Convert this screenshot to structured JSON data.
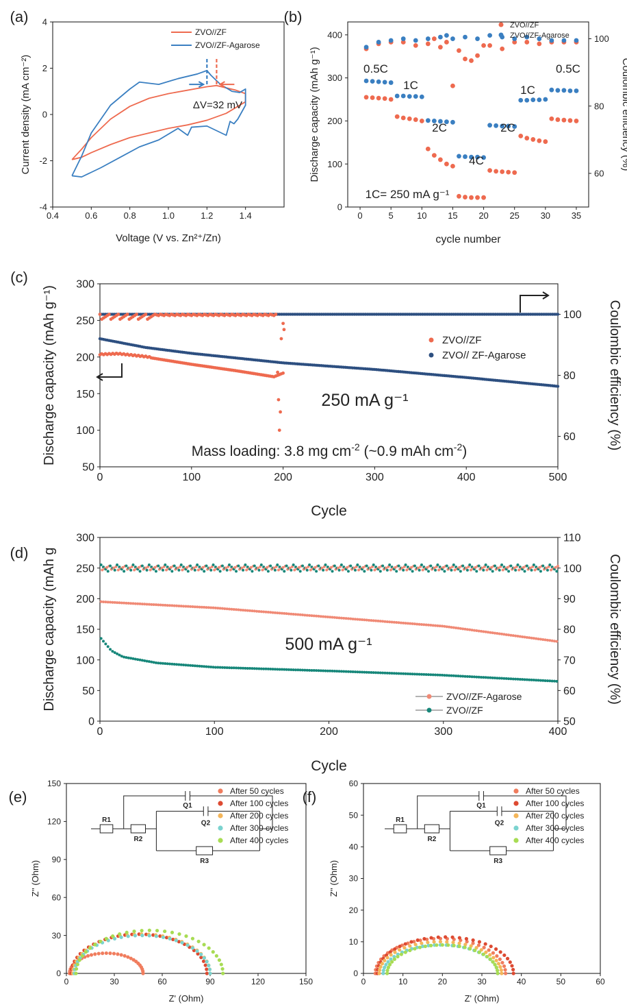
{
  "figure": {
    "panel_labels": [
      "(a)",
      "(b)",
      "(c)",
      "(d)",
      "(e)",
      "(f)"
    ]
  },
  "chart_data": [
    {
      "id": "a",
      "type": "line",
      "xlabel": "Voltage (V vs. Zn²⁺/Zn)",
      "ylabel": "Current density (mA cm⁻²)",
      "xlim": [
        0.4,
        1.6
      ],
      "ylim": [
        -4,
        4
      ],
      "xticks": [
        "0.4",
        "0.6",
        "0.8",
        "1.0",
        "1.2",
        "1.4"
      ],
      "yticks": [
        "-4",
        "-2",
        "0",
        "2",
        "4"
      ],
      "legend": [
        "ZVO//ZF",
        "ZVO//ZF-Agarose"
      ],
      "colors": [
        "#ee6a4f",
        "#3a7fc1"
      ],
      "annotation": "ΔV=32 mV",
      "series": [
        {
          "name": "ZVO//ZF",
          "x": [
            0.5,
            0.55,
            0.6,
            0.7,
            0.8,
            0.9,
            1.0,
            1.1,
            1.2,
            1.25,
            1.3,
            1.35,
            1.4,
            1.4,
            1.3,
            1.2,
            1.1,
            1.0,
            0.9,
            0.8,
            0.7,
            0.6,
            0.55,
            0.5
          ],
          "y": [
            -1.95,
            -1.5,
            -1.0,
            -0.2,
            0.35,
            0.7,
            0.9,
            1.05,
            1.2,
            1.25,
            1.15,
            1.05,
            0.9,
            0.55,
            0.05,
            -0.25,
            -0.45,
            -0.6,
            -0.8,
            -1.0,
            -1.3,
            -1.65,
            -1.85,
            -1.95
          ]
        },
        {
          "name": "ZVO//ZF-Agarose",
          "x": [
            0.5,
            0.55,
            0.6,
            0.7,
            0.8,
            0.85,
            0.95,
            1.05,
            1.15,
            1.2,
            1.22,
            1.27,
            1.33,
            1.37,
            1.4,
            1.4,
            1.36,
            1.34,
            1.32,
            1.3,
            1.2,
            1.12,
            1.1,
            1.05,
            0.95,
            0.85,
            0.75,
            0.65,
            0.6,
            0.55,
            0.5
          ],
          "y": [
            -2.65,
            -1.8,
            -0.8,
            0.4,
            1.1,
            1.4,
            1.3,
            1.55,
            1.75,
            1.9,
            1.7,
            1.3,
            1.0,
            0.95,
            1.1,
            0.4,
            -0.2,
            -0.4,
            -0.3,
            -0.9,
            -0.5,
            -0.55,
            -0.9,
            -0.6,
            -1.1,
            -1.4,
            -1.85,
            -2.3,
            -2.5,
            -2.7,
            -2.65
          ]
        }
      ]
    },
    {
      "id": "b",
      "type": "scatter",
      "xlabel": "cycle number",
      "ylabel": "Discharge capacity (mAh g⁻¹)",
      "ylabel_right": "Coulombic efficiency (%)",
      "xlim": [
        -2,
        37
      ],
      "ylim": [
        0,
        430
      ],
      "ylim_right": [
        50,
        105
      ],
      "xticks": [
        "0",
        "5",
        "10",
        "15",
        "20",
        "25",
        "30",
        "35"
      ],
      "yticks": [
        "0",
        "100",
        "200",
        "300",
        "400"
      ],
      "yticks_right": [
        "60",
        "80",
        "100"
      ],
      "legend": [
        "ZVO//ZF",
        "ZVO//ZF-Agarose"
      ],
      "colors": [
        "#ee6a4f",
        "#3a7fc1"
      ],
      "rate_labels": [
        "0.5C",
        "1C",
        "2C",
        "4C",
        "2C",
        "1C",
        "0.5C"
      ],
      "note": "1C= 250 mA g⁻¹",
      "series": [
        {
          "name": "ZVO//ZF",
          "x": [
            1,
            2,
            3,
            4,
            5,
            6,
            7,
            8,
            9,
            10,
            11,
            12,
            13,
            14,
            15,
            16,
            17,
            18,
            19,
            20,
            21,
            22,
            23,
            24,
            25,
            26,
            27,
            28,
            29,
            30,
            31,
            32,
            33,
            34,
            35
          ],
          "y": [
            255,
            254,
            253,
            252,
            250,
            210,
            207,
            205,
            203,
            200,
            135,
            120,
            110,
            100,
            95,
            25,
            23,
            22,
            22,
            22,
            85,
            83,
            82,
            81,
            80,
            165,
            160,
            157,
            154,
            152,
            205,
            203,
            202,
            201,
            200
          ]
        },
        {
          "name": "ZVO//ZF-Agarose",
          "x": [
            1,
            2,
            3,
            4,
            5,
            6,
            7,
            8,
            9,
            10,
            11,
            12,
            13,
            14,
            15,
            16,
            17,
            18,
            19,
            20,
            21,
            22,
            23,
            24,
            25,
            26,
            27,
            28,
            29,
            30,
            31,
            32,
            33,
            34,
            35
          ],
          "y": [
            293,
            292,
            291,
            290,
            289,
            258,
            258,
            257,
            257,
            256,
            201,
            200,
            199,
            198,
            197,
            118,
            117,
            116,
            116,
            115,
            190,
            189,
            188,
            188,
            187,
            248,
            248,
            249,
            249,
            250,
            272,
            271,
            271,
            270,
            270
          ]
        },
        {
          "name": "ZVO//ZF CE",
          "x": [
            1,
            3,
            5,
            7,
            9,
            11,
            12,
            13,
            14,
            15,
            16,
            17,
            18,
            19,
            20,
            21,
            23,
            25,
            27,
            29,
            31,
            33,
            35
          ],
          "y": [
            97,
            98.5,
            99,
            99,
            98,
            98.5,
            100,
            97.5,
            99,
            86,
            96.5,
            94,
            93.5,
            95,
            98,
            98,
            97,
            99,
            99,
            98.5,
            99,
            99,
            99
          ]
        },
        {
          "name": "ZVO//ZF-Agarose CE",
          "x": [
            1,
            3,
            5,
            7,
            9,
            11,
            13,
            14,
            15,
            17,
            19,
            21,
            23,
            25,
            27,
            29,
            31,
            33,
            35
          ],
          "y": [
            97.5,
            99,
            99.5,
            100,
            99.5,
            100,
            100.5,
            101,
            100,
            100.5,
            100,
            101,
            100.5,
            100,
            100.5,
            100,
            99.5,
            99.5,
            99.5
          ]
        }
      ]
    },
    {
      "id": "c",
      "type": "scatter",
      "xlabel": "Cycle",
      "ylabel": "Discharge capacity (mAh g⁻¹)",
      "ylabel_right": "Coulombic efficiency (%)",
      "xlim": [
        0,
        500
      ],
      "ylim": [
        50,
        300
      ],
      "ylim_right": [
        50,
        110
      ],
      "xticks": [
        "0",
        "100",
        "200",
        "300",
        "400",
        "500"
      ],
      "yticks": [
        "50",
        "100",
        "150",
        "200",
        "250",
        "300"
      ],
      "yticks_right": [
        "60",
        "80",
        "100"
      ],
      "legend": [
        "ZVO//ZF",
        "ZVO// ZF-Agarose"
      ],
      "colors": [
        "#ee6a4f",
        "#2d4f80"
      ],
      "annotation": "250 mA g⁻¹",
      "note_prefix": "Mass loading: 3.8 mg cm",
      "note_exp1": "-2",
      "note_mid": " (~0.9 mAh cm",
      "note_exp2": "-2",
      "note_suffix": ")",
      "series": [
        {
          "name": "ZVO//ZF capacity",
          "x": [
            0,
            20,
            50,
            100,
            150,
            190,
            200
          ],
          "y": [
            203,
            204,
            200,
            190,
            181,
            173,
            178
          ]
        },
        {
          "name": "ZVO// ZF-Agarose capacity",
          "x": [
            0,
            50,
            100,
            200,
            300,
            400,
            500
          ],
          "y": [
            225,
            213,
            205,
            192,
            183,
            172,
            160
          ]
        },
        {
          "name": "ZVO//ZF CE",
          "x": [
            0,
            50,
            100,
            150,
            190,
            195,
            197,
            200
          ],
          "y": [
            99.5,
            100,
            100,
            100,
            99.5,
            62,
            97,
            92
          ]
        },
        {
          "name": "ZVO// ZF-Agarose CE",
          "x": [
            0,
            100,
            200,
            300,
            400,
            500
          ],
          "y": [
            100,
            100,
            100,
            100,
            100,
            100
          ]
        }
      ]
    },
    {
      "id": "d",
      "type": "line",
      "xlabel": "Cycle",
      "ylabel": "Discharge capacity (mAh g",
      "ylabel_right": "Coulombic efficiency (%)",
      "xlim": [
        0,
        400
      ],
      "ylim": [
        0,
        300
      ],
      "ylim_right": [
        50,
        110
      ],
      "xticks": [
        "0",
        "100",
        "200",
        "300",
        "400"
      ],
      "yticks": [
        "0",
        "50",
        "100",
        "150",
        "200",
        "250",
        "300"
      ],
      "yticks_right": [
        "50",
        "60",
        "70",
        "80",
        "90",
        "100",
        "110"
      ],
      "legend": [
        "ZVO//ZF-Agarose",
        "ZVO//ZF"
      ],
      "colors": [
        "#f08a76",
        "#17877a"
      ],
      "annotation": "500 mA g⁻¹",
      "series": [
        {
          "name": "ZVO//ZF-Agarose capacity",
          "x": [
            1,
            20,
            50,
            100,
            200,
            300,
            400
          ],
          "y": [
            195,
            193,
            190,
            185,
            170,
            155,
            130
          ]
        },
        {
          "name": "ZVO//ZF capacity",
          "x": [
            1,
            10,
            20,
            50,
            100,
            200,
            300,
            400
          ],
          "y": [
            135,
            115,
            105,
            95,
            88,
            82,
            75,
            65
          ]
        },
        {
          "name": "ZVO//ZF-Agarose CE",
          "x": [
            1,
            400
          ],
          "y": [
            100,
            100
          ]
        },
        {
          "name": "ZVO//ZF CE",
          "x": [
            1,
            400
          ],
          "y": [
            100,
            100
          ]
        }
      ]
    },
    {
      "id": "e",
      "type": "scatter",
      "xlabel": "Z' (Ohm)",
      "ylabel": "Z'' (Ohm)",
      "xlim": [
        0,
        150
      ],
      "ylim": [
        0,
        150
      ],
      "xticks": [
        "0",
        "30",
        "60",
        "90",
        "120",
        "150"
      ],
      "yticks": [
        "0",
        "30",
        "60",
        "90",
        "120",
        "150"
      ],
      "legend": [
        "After 50 cycles",
        "After 100 cycles",
        "After 200 cycles",
        "After 300 cycles",
        "After 400 cycles"
      ],
      "colors": [
        "#f07d5e",
        "#dd4a32",
        "#f4b65a",
        "#7bd3cf",
        "#a8dc54"
      ],
      "circuit_labels": [
        "R1",
        "R2",
        "Q1",
        "Q2",
        "R3"
      ],
      "series": [
        {
          "name": "After 50 cycles",
          "x0": 2,
          "x1": 48,
          "peak": 16
        },
        {
          "name": "After 100 cycles",
          "x0": 3,
          "x1": 88,
          "peak": 31
        },
        {
          "name": "After 200 cycles",
          "x0": 4,
          "x1": 90,
          "peak": 31
        },
        {
          "name": "After 300 cycles",
          "x0": 5,
          "x1": 90,
          "peak": 30
        },
        {
          "name": "After 400 cycles",
          "x0": 6,
          "x1": 98,
          "peak": 34
        }
      ]
    },
    {
      "id": "f",
      "type": "scatter",
      "xlabel": "Z' (Ohm)",
      "ylabel": "Z'' (Ohm)",
      "xlim": [
        0,
        60
      ],
      "ylim": [
        0,
        60
      ],
      "xticks": [
        "0",
        "10",
        "20",
        "30",
        "40",
        "50",
        "60"
      ],
      "yticks": [
        "0",
        "10",
        "20",
        "30",
        "40",
        "50",
        "60"
      ],
      "legend": [
        "After 50 cycles",
        "After 100 cycles",
        "After 200 cycles",
        "After 300 cycles",
        "After 400 cycles"
      ],
      "colors": [
        "#f07d5e",
        "#dd4a32",
        "#f4b65a",
        "#7bd3cf",
        "#a8dc54"
      ],
      "circuit_labels": [
        "R1",
        "R2",
        "Q1",
        "Q2",
        "R3"
      ],
      "series": [
        {
          "name": "After 50 cycles",
          "x0": 3,
          "x1": 36,
          "peak": 11
        },
        {
          "name": "After 100 cycles",
          "x0": 3.5,
          "x1": 38,
          "peak": 11.5
        },
        {
          "name": "After 200 cycles",
          "x0": 4,
          "x1": 35,
          "peak": 10
        },
        {
          "name": "After 300 cycles",
          "x0": 5,
          "x1": 34,
          "peak": 9
        },
        {
          "name": "After 400 cycles",
          "x0": 6,
          "x1": 34,
          "peak": 9
        }
      ]
    }
  ]
}
